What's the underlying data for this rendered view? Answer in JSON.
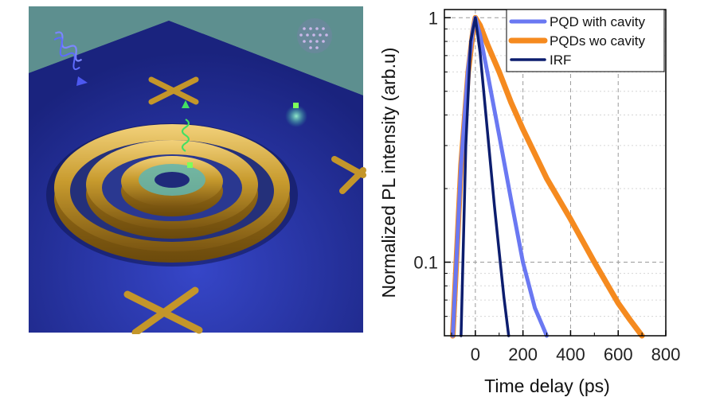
{
  "illustration": {
    "description_icons": [
      "excitation-pulse-icon",
      "emission-pulse-icon",
      "alignment-cross-icon",
      "quantum-dot-icon",
      "bullseye-cavity-icon"
    ]
  },
  "chart_data": {
    "type": "line",
    "xlabel": "Time delay (ps)",
    "ylabel": "Normalized PL intensity (arb.u)",
    "xlim": [
      -130,
      800
    ],
    "ylim": [
      0.05,
      1.08
    ],
    "yscale": "log",
    "xticks": [
      0,
      200,
      400,
      600,
      800
    ],
    "xtick_labels": [
      "0",
      "200",
      "400",
      "600",
      "800"
    ],
    "yticks": [
      0.1,
      1
    ],
    "ytick_labels": [
      "0.1",
      "1"
    ],
    "grid": true,
    "legend_position": "top-right",
    "series": [
      {
        "name": "PQD with cavity",
        "color": "#6a78f2",
        "x": [
          -95,
          -60,
          -30,
          -10,
          0,
          20,
          50,
          100,
          150,
          200,
          250,
          300
        ],
        "y": [
          0.05,
          0.25,
          0.62,
          0.9,
          1.0,
          0.85,
          0.6,
          0.33,
          0.18,
          0.1,
          0.065,
          0.05
        ]
      },
      {
        "name": "PQDs wo cavity",
        "color": "#f58a1f",
        "x": [
          -95,
          -60,
          -30,
          -10,
          0,
          20,
          50,
          100,
          150,
          200,
          300,
          400,
          500,
          600,
          650,
          700
        ],
        "y": [
          0.05,
          0.25,
          0.6,
          0.88,
          1.0,
          0.93,
          0.78,
          0.6,
          0.45,
          0.35,
          0.22,
          0.15,
          0.1,
          0.068,
          0.058,
          0.05
        ]
      },
      {
        "name": "IRF",
        "color": "#0c1d6e",
        "x": [
          -60,
          -40,
          -20,
          0,
          20,
          50,
          80,
          100,
          120,
          140
        ],
        "y": [
          0.05,
          0.3,
          0.8,
          1.0,
          0.72,
          0.35,
          0.17,
          0.11,
          0.072,
          0.05
        ]
      }
    ]
  }
}
